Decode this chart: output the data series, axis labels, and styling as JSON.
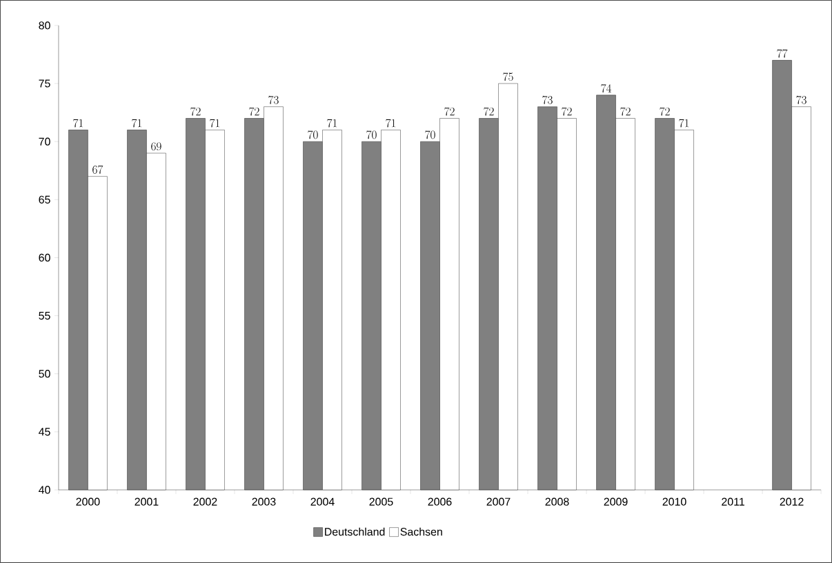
{
  "chart_data": {
    "type": "bar",
    "categories": [
      "2000",
      "2001",
      "2002",
      "2003",
      "2004",
      "2005",
      "2006",
      "2007",
      "2008",
      "2009",
      "2010",
      "2011",
      "2012"
    ],
    "series": [
      {
        "name": "Deutschland",
        "color": "#808080",
        "values": [
          71,
          71,
          72,
          72,
          70,
          70,
          70,
          72,
          73,
          74,
          72,
          null,
          77
        ]
      },
      {
        "name": "Sachsen",
        "color": "#ffffff",
        "values": [
          67,
          69,
          71,
          73,
          71,
          71,
          72,
          75,
          72,
          72,
          71,
          null,
          73
        ]
      }
    ],
    "ylim": [
      40,
      80
    ],
    "yticks": [
      40,
      45,
      50,
      55,
      60,
      65,
      70,
      75,
      80
    ],
    "data_labels": true,
    "legend": "bottom",
    "grid": false
  }
}
